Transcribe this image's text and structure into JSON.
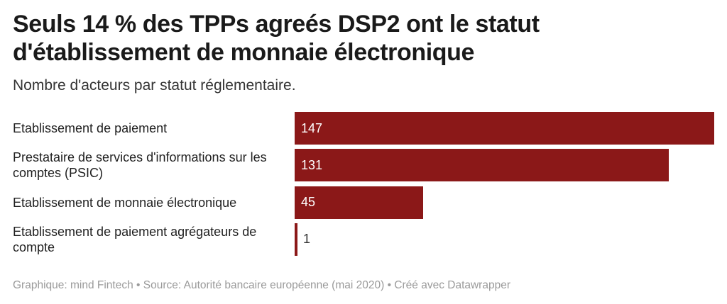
{
  "title": "Seuls 14 % des TPPs agreés DSP2 ont le statut d'établissement de monnaie électronique",
  "subtitle": "Nombre d'acteurs par statut réglementaire.",
  "footer": "Graphique: mind Fintech • Source: Autorité bancaire européenne (mai 2020) • Créé avec Datawrapper",
  "colors": {
    "bar": "#8b1818",
    "value_inside": "#ffffff",
    "value_outside": "#333333",
    "footer": "#9a9a9a"
  },
  "chart_data": {
    "type": "bar",
    "orientation": "horizontal",
    "title": "Seuls 14 % des TPPs agreés DSP2 ont le statut d'établissement de monnaie électronique",
    "subtitle": "Nombre d'acteurs par statut réglementaire.",
    "categories": [
      "Etablissement de paiement",
      "Prestataire de services d'informations sur les comptes (PSIC)",
      "Etablissement de monnaie électronique",
      "Etablissement de paiement agrégateurs de compte"
    ],
    "values": [
      147,
      131,
      45,
      1
    ],
    "xlim": [
      0,
      147
    ],
    "grid": false,
    "legend": "none"
  }
}
